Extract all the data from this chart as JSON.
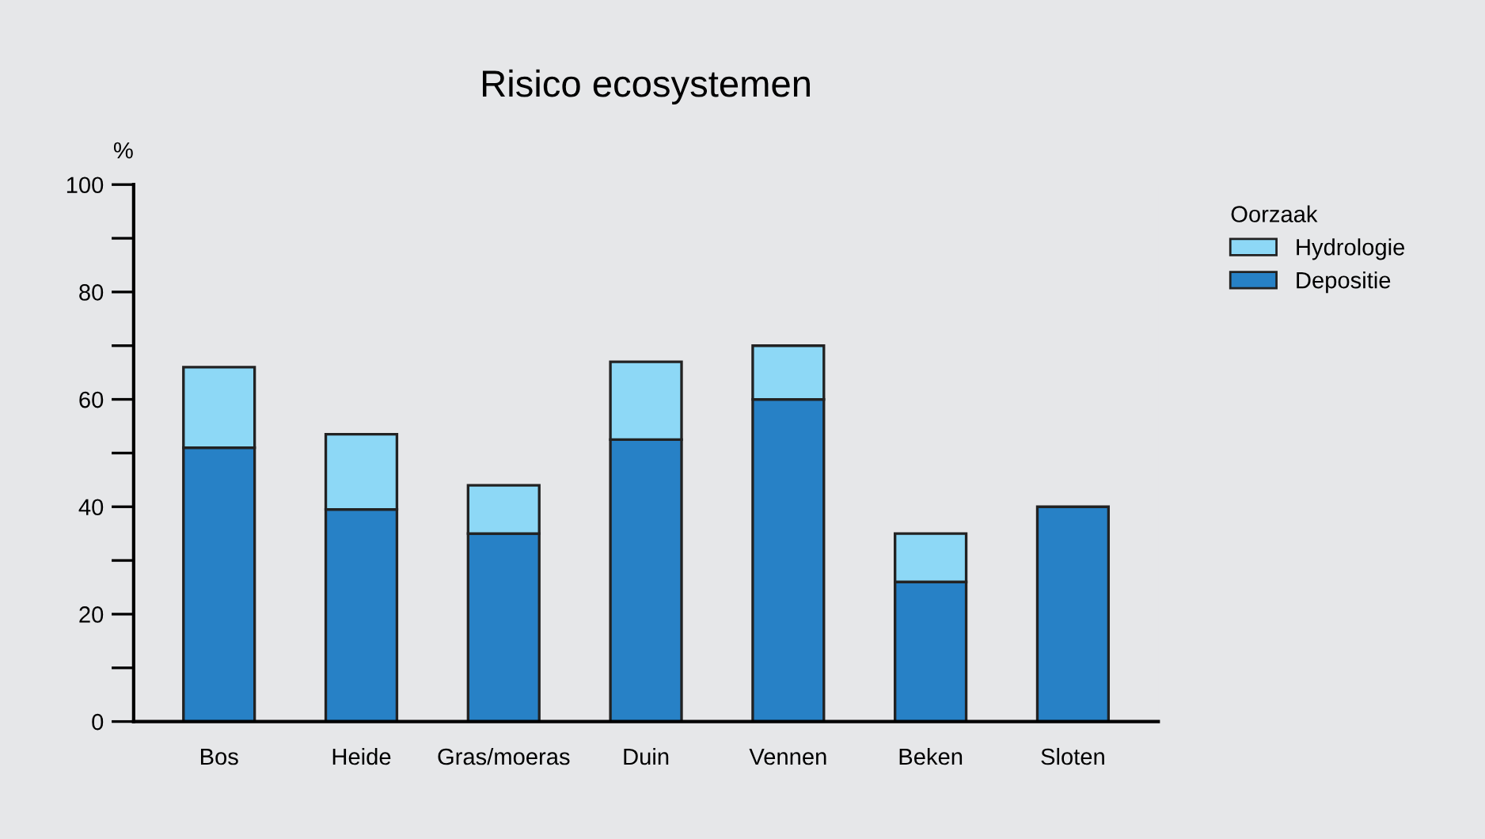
{
  "chart_data": {
    "type": "bar",
    "title": "Risico ecosystemen",
    "ylabel": "%",
    "legend_title": "Oorzaak",
    "stacked": true,
    "legend": "top right",
    "grid": false,
    "categories": [
      "Bos",
      "Heide",
      "Gras/moeras",
      "Duin",
      "Vennen",
      "Beken",
      "Sloten"
    ],
    "series": [
      {
        "name": "Depositie",
        "color": "#2781c6",
        "values": [
          51,
          39.5,
          35,
          52.5,
          60,
          26,
          40
        ]
      },
      {
        "name": "Hydrologie",
        "color": "#8dd8f6",
        "values": [
          15,
          14,
          9,
          14.5,
          10,
          9,
          null
        ]
      }
    ],
    "ylim": [
      0,
      100
    ],
    "yticks": [
      0,
      {
        "value": 10,
        "label": null
      },
      20,
      {
        "value": 30,
        "label": null
      },
      40,
      {
        "value": 50,
        "label": null
      },
      60,
      {
        "value": 70,
        "label": null
      },
      80,
      {
        "value": 90,
        "label": null
      },
      100
    ]
  }
}
